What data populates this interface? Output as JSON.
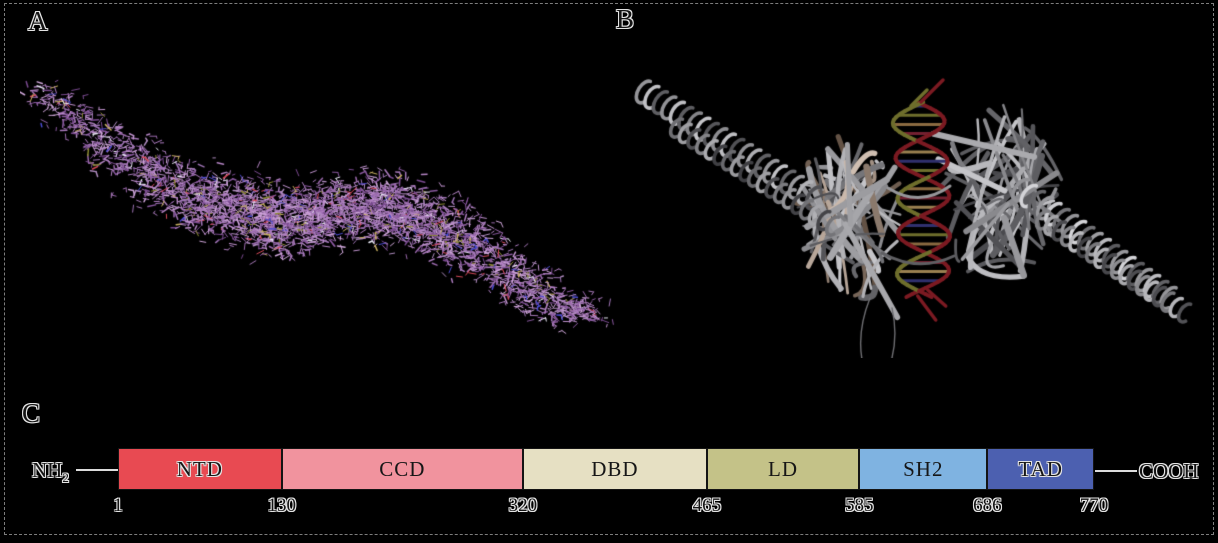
{
  "figure": {
    "background": "#000000",
    "border_color": "#7d7d7d",
    "text_fill_color": "#141414",
    "text_outline_color": "#e4e4e4"
  },
  "panels": {
    "a": {
      "label": "A",
      "content": "atomic stick model of protein dimer",
      "stick_palette": [
        "#a678b8",
        "#b484c4",
        "#9a68ac",
        "#8a58a0",
        "#c294d0",
        "#7a4a90",
        "#b08cc0",
        "#cfa6da",
        "#9f74b6",
        "#ad7cc0"
      ],
      "stick_accents": [
        "#d84a5a",
        "#4a4ad0",
        "#8a8a30",
        "#e8e8f4",
        "#c8b060"
      ]
    },
    "b": {
      "label": "B",
      "content": "ribbon model of protein dimer bound to DNA double helix",
      "ribbon_grays": [
        "#4f4f4f",
        "#8a8a8a",
        "#c8c8c8",
        "#a89890"
      ],
      "dna_strand_colors": [
        "#7b1a22",
        "#6e6e2c"
      ],
      "dna_rung_colors": [
        "#30306e",
        "#6e6e2c",
        "#8a6a40",
        "#722030",
        "#9a8050"
      ]
    },
    "c": {
      "label": "C",
      "n_terminus": {
        "main": "NH",
        "sub": "2"
      },
      "c_terminus": "COOH",
      "scale": {
        "start": 1,
        "end": 770
      },
      "domains": [
        {
          "name": "NTD",
          "start": 1,
          "end": 130,
          "color": "#e84a52"
        },
        {
          "name": "CCD",
          "start": 130,
          "end": 320,
          "color": "#f1939e"
        },
        {
          "name": "DBD",
          "start": 320,
          "end": 465,
          "color": "#e6e0c3"
        },
        {
          "name": "LD",
          "start": 465,
          "end": 585,
          "color": "#c4c288"
        },
        {
          "name": "SH2",
          "start": 585,
          "end": 686,
          "color": "#7fb3e1"
        },
        {
          "name": "TAD",
          "start": 686,
          "end": 770,
          "color": "#4c60b0"
        }
      ],
      "ticks": [
        1,
        130,
        320,
        465,
        585,
        686,
        770
      ]
    }
  }
}
